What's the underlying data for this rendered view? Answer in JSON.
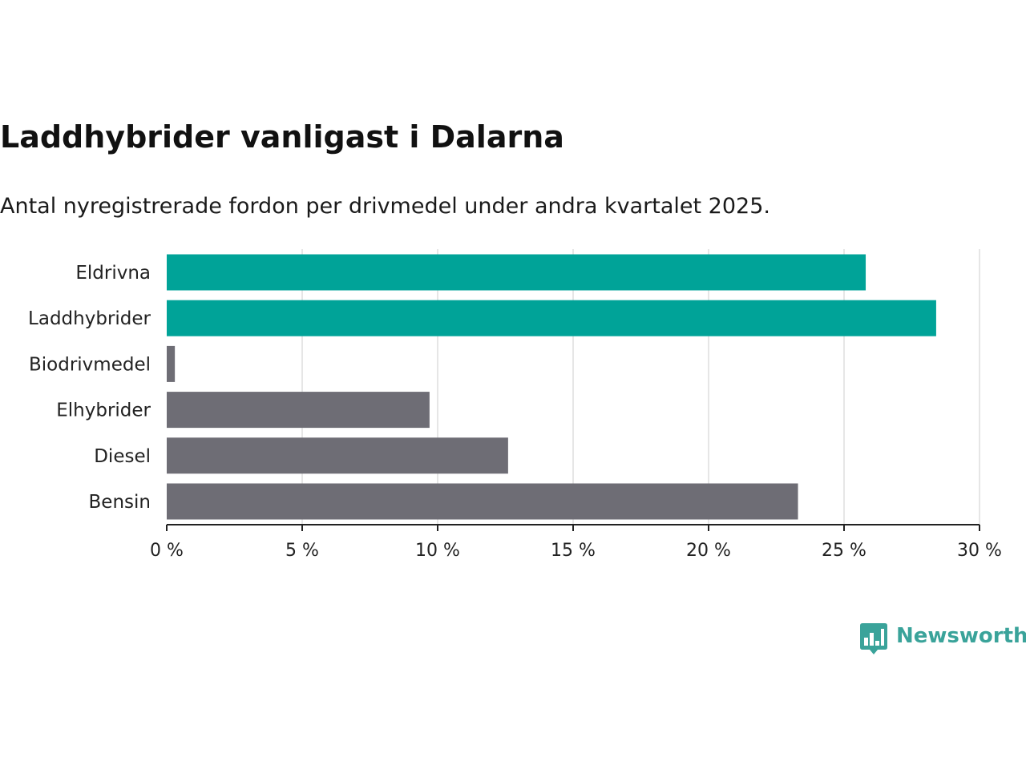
{
  "title": "Laddhybrider vanligast i Dalarna",
  "subtitle": "Antal nyregistrerade fordon per drivmedel under andra kvartalet 2025.",
  "brand": {
    "name": "Newsworthy",
    "icon": "bar-chart-bubble-icon",
    "color": "#3aa39a"
  },
  "colors": {
    "highlight": "#00a398",
    "default": "#6e6d75",
    "grid": "#dddddd",
    "axis": "#222222"
  },
  "chart_data": {
    "type": "bar",
    "orientation": "horizontal",
    "categories": [
      "Eldrivna",
      "Laddhybrider",
      "Biodrivmedel",
      "Elhybrider",
      "Diesel",
      "Bensin"
    ],
    "values": [
      25.8,
      28.4,
      0.3,
      9.7,
      12.6,
      23.3
    ],
    "highlighted": [
      true,
      true,
      false,
      false,
      false,
      false
    ],
    "xlim": [
      0,
      30
    ],
    "xticks": [
      0,
      5,
      10,
      15,
      20,
      25,
      30
    ],
    "tick_labels": [
      "0 %",
      "5 %",
      "10 %",
      "15 %",
      "20 %",
      "25 %",
      "30 %"
    ],
    "unit": "%",
    "grid": true,
    "legend": "none"
  }
}
